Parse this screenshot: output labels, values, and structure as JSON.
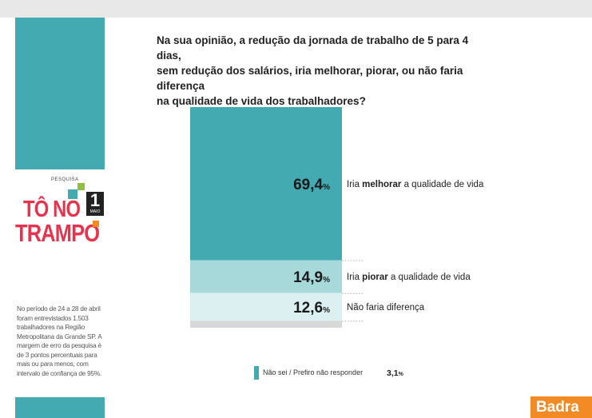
{
  "question": {
    "line1": "Na sua opinião, a redução da jornada de trabalho de 5 para 4 dias,",
    "line2": "sem redução dos salários, iria melhorar, piorar, ou não faria diferença",
    "line3": "na qualidade de vida dos trabalhadores?"
  },
  "logo": {
    "pesquisa": "PESQUISA",
    "line1": "TÔ NO",
    "line2": "TRAMPO",
    "day": "1",
    "month": "MAIO"
  },
  "note": "No período de 24 a 28 de abril foram entrevistados 1.503 trabalhadores na Região Metropolitana da Grande SP. A margem de erro da pesquisa é de 3 pontos percentuais para mais ou para menos, com intervalo de confiança de 95%.",
  "chart_data": {
    "type": "bar",
    "orientation": "stacked-vertical",
    "unit": "%",
    "segments": [
      {
        "value": 69.4,
        "value_label": "69,4",
        "label_prefix": "Iria ",
        "label_bold": "melhorar",
        "label_suffix": " a qualidade de vida",
        "color": "#42aab0"
      },
      {
        "value": 14.9,
        "value_label": "14,9",
        "label_prefix": "Iria ",
        "label_bold": "piorar",
        "label_suffix": " a qualidade de vida",
        "color": "#a7d8da"
      },
      {
        "value": 12.6,
        "value_label": "12,6",
        "label_prefix": "",
        "label_bold": "",
        "label_suffix": "Não faria diferença",
        "color": "#ddf0f1"
      },
      {
        "value": 3.1,
        "value_label": "3,1",
        "label_prefix": "",
        "label_bold": "",
        "label_suffix": "Não sei / Prefiro não responder",
        "color": "#d8d8d8"
      }
    ]
  },
  "legend": {
    "label": "Não sei / Prefiro não responder",
    "value": "3,1",
    "unit": "%"
  },
  "brand": "Badra"
}
